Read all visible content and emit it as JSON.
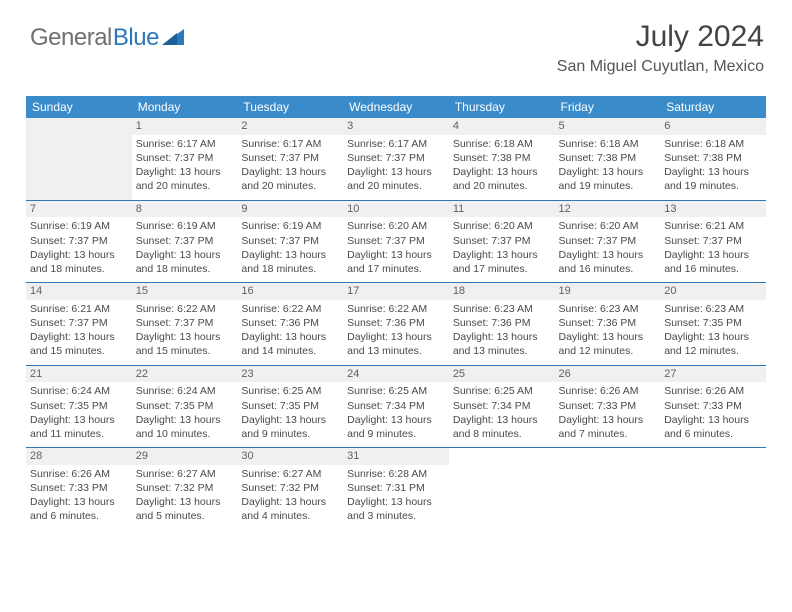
{
  "logo": {
    "part1": "General",
    "part2": "Blue"
  },
  "header": {
    "title": "July 2024",
    "location": "San Miguel Cuyutlan, Mexico"
  },
  "colors": {
    "header_bar": "#3a8bc9",
    "week_divider": "#2c78bd",
    "daynum_bg": "#f0f0f0",
    "text": "#4a4a4a",
    "logo_gray": "#707070",
    "logo_blue": "#2c78bd",
    "background": "#ffffff"
  },
  "daynames": [
    "Sunday",
    "Monday",
    "Tuesday",
    "Wednesday",
    "Thursday",
    "Friday",
    "Saturday"
  ],
  "weeks": [
    [
      null,
      {
        "n": "1",
        "sr": "Sunrise: 6:17 AM",
        "ss": "Sunset: 7:37 PM",
        "d1": "Daylight: 13 hours",
        "d2": "and 20 minutes."
      },
      {
        "n": "2",
        "sr": "Sunrise: 6:17 AM",
        "ss": "Sunset: 7:37 PM",
        "d1": "Daylight: 13 hours",
        "d2": "and 20 minutes."
      },
      {
        "n": "3",
        "sr": "Sunrise: 6:17 AM",
        "ss": "Sunset: 7:37 PM",
        "d1": "Daylight: 13 hours",
        "d2": "and 20 minutes."
      },
      {
        "n": "4",
        "sr": "Sunrise: 6:18 AM",
        "ss": "Sunset: 7:38 PM",
        "d1": "Daylight: 13 hours",
        "d2": "and 20 minutes."
      },
      {
        "n": "5",
        "sr": "Sunrise: 6:18 AM",
        "ss": "Sunset: 7:38 PM",
        "d1": "Daylight: 13 hours",
        "d2": "and 19 minutes."
      },
      {
        "n": "6",
        "sr": "Sunrise: 6:18 AM",
        "ss": "Sunset: 7:38 PM",
        "d1": "Daylight: 13 hours",
        "d2": "and 19 minutes."
      }
    ],
    [
      {
        "n": "7",
        "sr": "Sunrise: 6:19 AM",
        "ss": "Sunset: 7:37 PM",
        "d1": "Daylight: 13 hours",
        "d2": "and 18 minutes."
      },
      {
        "n": "8",
        "sr": "Sunrise: 6:19 AM",
        "ss": "Sunset: 7:37 PM",
        "d1": "Daylight: 13 hours",
        "d2": "and 18 minutes."
      },
      {
        "n": "9",
        "sr": "Sunrise: 6:19 AM",
        "ss": "Sunset: 7:37 PM",
        "d1": "Daylight: 13 hours",
        "d2": "and 18 minutes."
      },
      {
        "n": "10",
        "sr": "Sunrise: 6:20 AM",
        "ss": "Sunset: 7:37 PM",
        "d1": "Daylight: 13 hours",
        "d2": "and 17 minutes."
      },
      {
        "n": "11",
        "sr": "Sunrise: 6:20 AM",
        "ss": "Sunset: 7:37 PM",
        "d1": "Daylight: 13 hours",
        "d2": "and 17 minutes."
      },
      {
        "n": "12",
        "sr": "Sunrise: 6:20 AM",
        "ss": "Sunset: 7:37 PM",
        "d1": "Daylight: 13 hours",
        "d2": "and 16 minutes."
      },
      {
        "n": "13",
        "sr": "Sunrise: 6:21 AM",
        "ss": "Sunset: 7:37 PM",
        "d1": "Daylight: 13 hours",
        "d2": "and 16 minutes."
      }
    ],
    [
      {
        "n": "14",
        "sr": "Sunrise: 6:21 AM",
        "ss": "Sunset: 7:37 PM",
        "d1": "Daylight: 13 hours",
        "d2": "and 15 minutes."
      },
      {
        "n": "15",
        "sr": "Sunrise: 6:22 AM",
        "ss": "Sunset: 7:37 PM",
        "d1": "Daylight: 13 hours",
        "d2": "and 15 minutes."
      },
      {
        "n": "16",
        "sr": "Sunrise: 6:22 AM",
        "ss": "Sunset: 7:36 PM",
        "d1": "Daylight: 13 hours",
        "d2": "and 14 minutes."
      },
      {
        "n": "17",
        "sr": "Sunrise: 6:22 AM",
        "ss": "Sunset: 7:36 PM",
        "d1": "Daylight: 13 hours",
        "d2": "and 13 minutes."
      },
      {
        "n": "18",
        "sr": "Sunrise: 6:23 AM",
        "ss": "Sunset: 7:36 PM",
        "d1": "Daylight: 13 hours",
        "d2": "and 13 minutes."
      },
      {
        "n": "19",
        "sr": "Sunrise: 6:23 AM",
        "ss": "Sunset: 7:36 PM",
        "d1": "Daylight: 13 hours",
        "d2": "and 12 minutes."
      },
      {
        "n": "20",
        "sr": "Sunrise: 6:23 AM",
        "ss": "Sunset: 7:35 PM",
        "d1": "Daylight: 13 hours",
        "d2": "and 12 minutes."
      }
    ],
    [
      {
        "n": "21",
        "sr": "Sunrise: 6:24 AM",
        "ss": "Sunset: 7:35 PM",
        "d1": "Daylight: 13 hours",
        "d2": "and 11 minutes."
      },
      {
        "n": "22",
        "sr": "Sunrise: 6:24 AM",
        "ss": "Sunset: 7:35 PM",
        "d1": "Daylight: 13 hours",
        "d2": "and 10 minutes."
      },
      {
        "n": "23",
        "sr": "Sunrise: 6:25 AM",
        "ss": "Sunset: 7:35 PM",
        "d1": "Daylight: 13 hours",
        "d2": "and 9 minutes."
      },
      {
        "n": "24",
        "sr": "Sunrise: 6:25 AM",
        "ss": "Sunset: 7:34 PM",
        "d1": "Daylight: 13 hours",
        "d2": "and 9 minutes."
      },
      {
        "n": "25",
        "sr": "Sunrise: 6:25 AM",
        "ss": "Sunset: 7:34 PM",
        "d1": "Daylight: 13 hours",
        "d2": "and 8 minutes."
      },
      {
        "n": "26",
        "sr": "Sunrise: 6:26 AM",
        "ss": "Sunset: 7:33 PM",
        "d1": "Daylight: 13 hours",
        "d2": "and 7 minutes."
      },
      {
        "n": "27",
        "sr": "Sunrise: 6:26 AM",
        "ss": "Sunset: 7:33 PM",
        "d1": "Daylight: 13 hours",
        "d2": "and 6 minutes."
      }
    ],
    [
      {
        "n": "28",
        "sr": "Sunrise: 6:26 AM",
        "ss": "Sunset: 7:33 PM",
        "d1": "Daylight: 13 hours",
        "d2": "and 6 minutes."
      },
      {
        "n": "29",
        "sr": "Sunrise: 6:27 AM",
        "ss": "Sunset: 7:32 PM",
        "d1": "Daylight: 13 hours",
        "d2": "and 5 minutes."
      },
      {
        "n": "30",
        "sr": "Sunrise: 6:27 AM",
        "ss": "Sunset: 7:32 PM",
        "d1": "Daylight: 13 hours",
        "d2": "and 4 minutes."
      },
      {
        "n": "31",
        "sr": "Sunrise: 6:28 AM",
        "ss": "Sunset: 7:31 PM",
        "d1": "Daylight: 13 hours",
        "d2": "and 3 minutes."
      },
      null,
      null,
      null
    ]
  ]
}
